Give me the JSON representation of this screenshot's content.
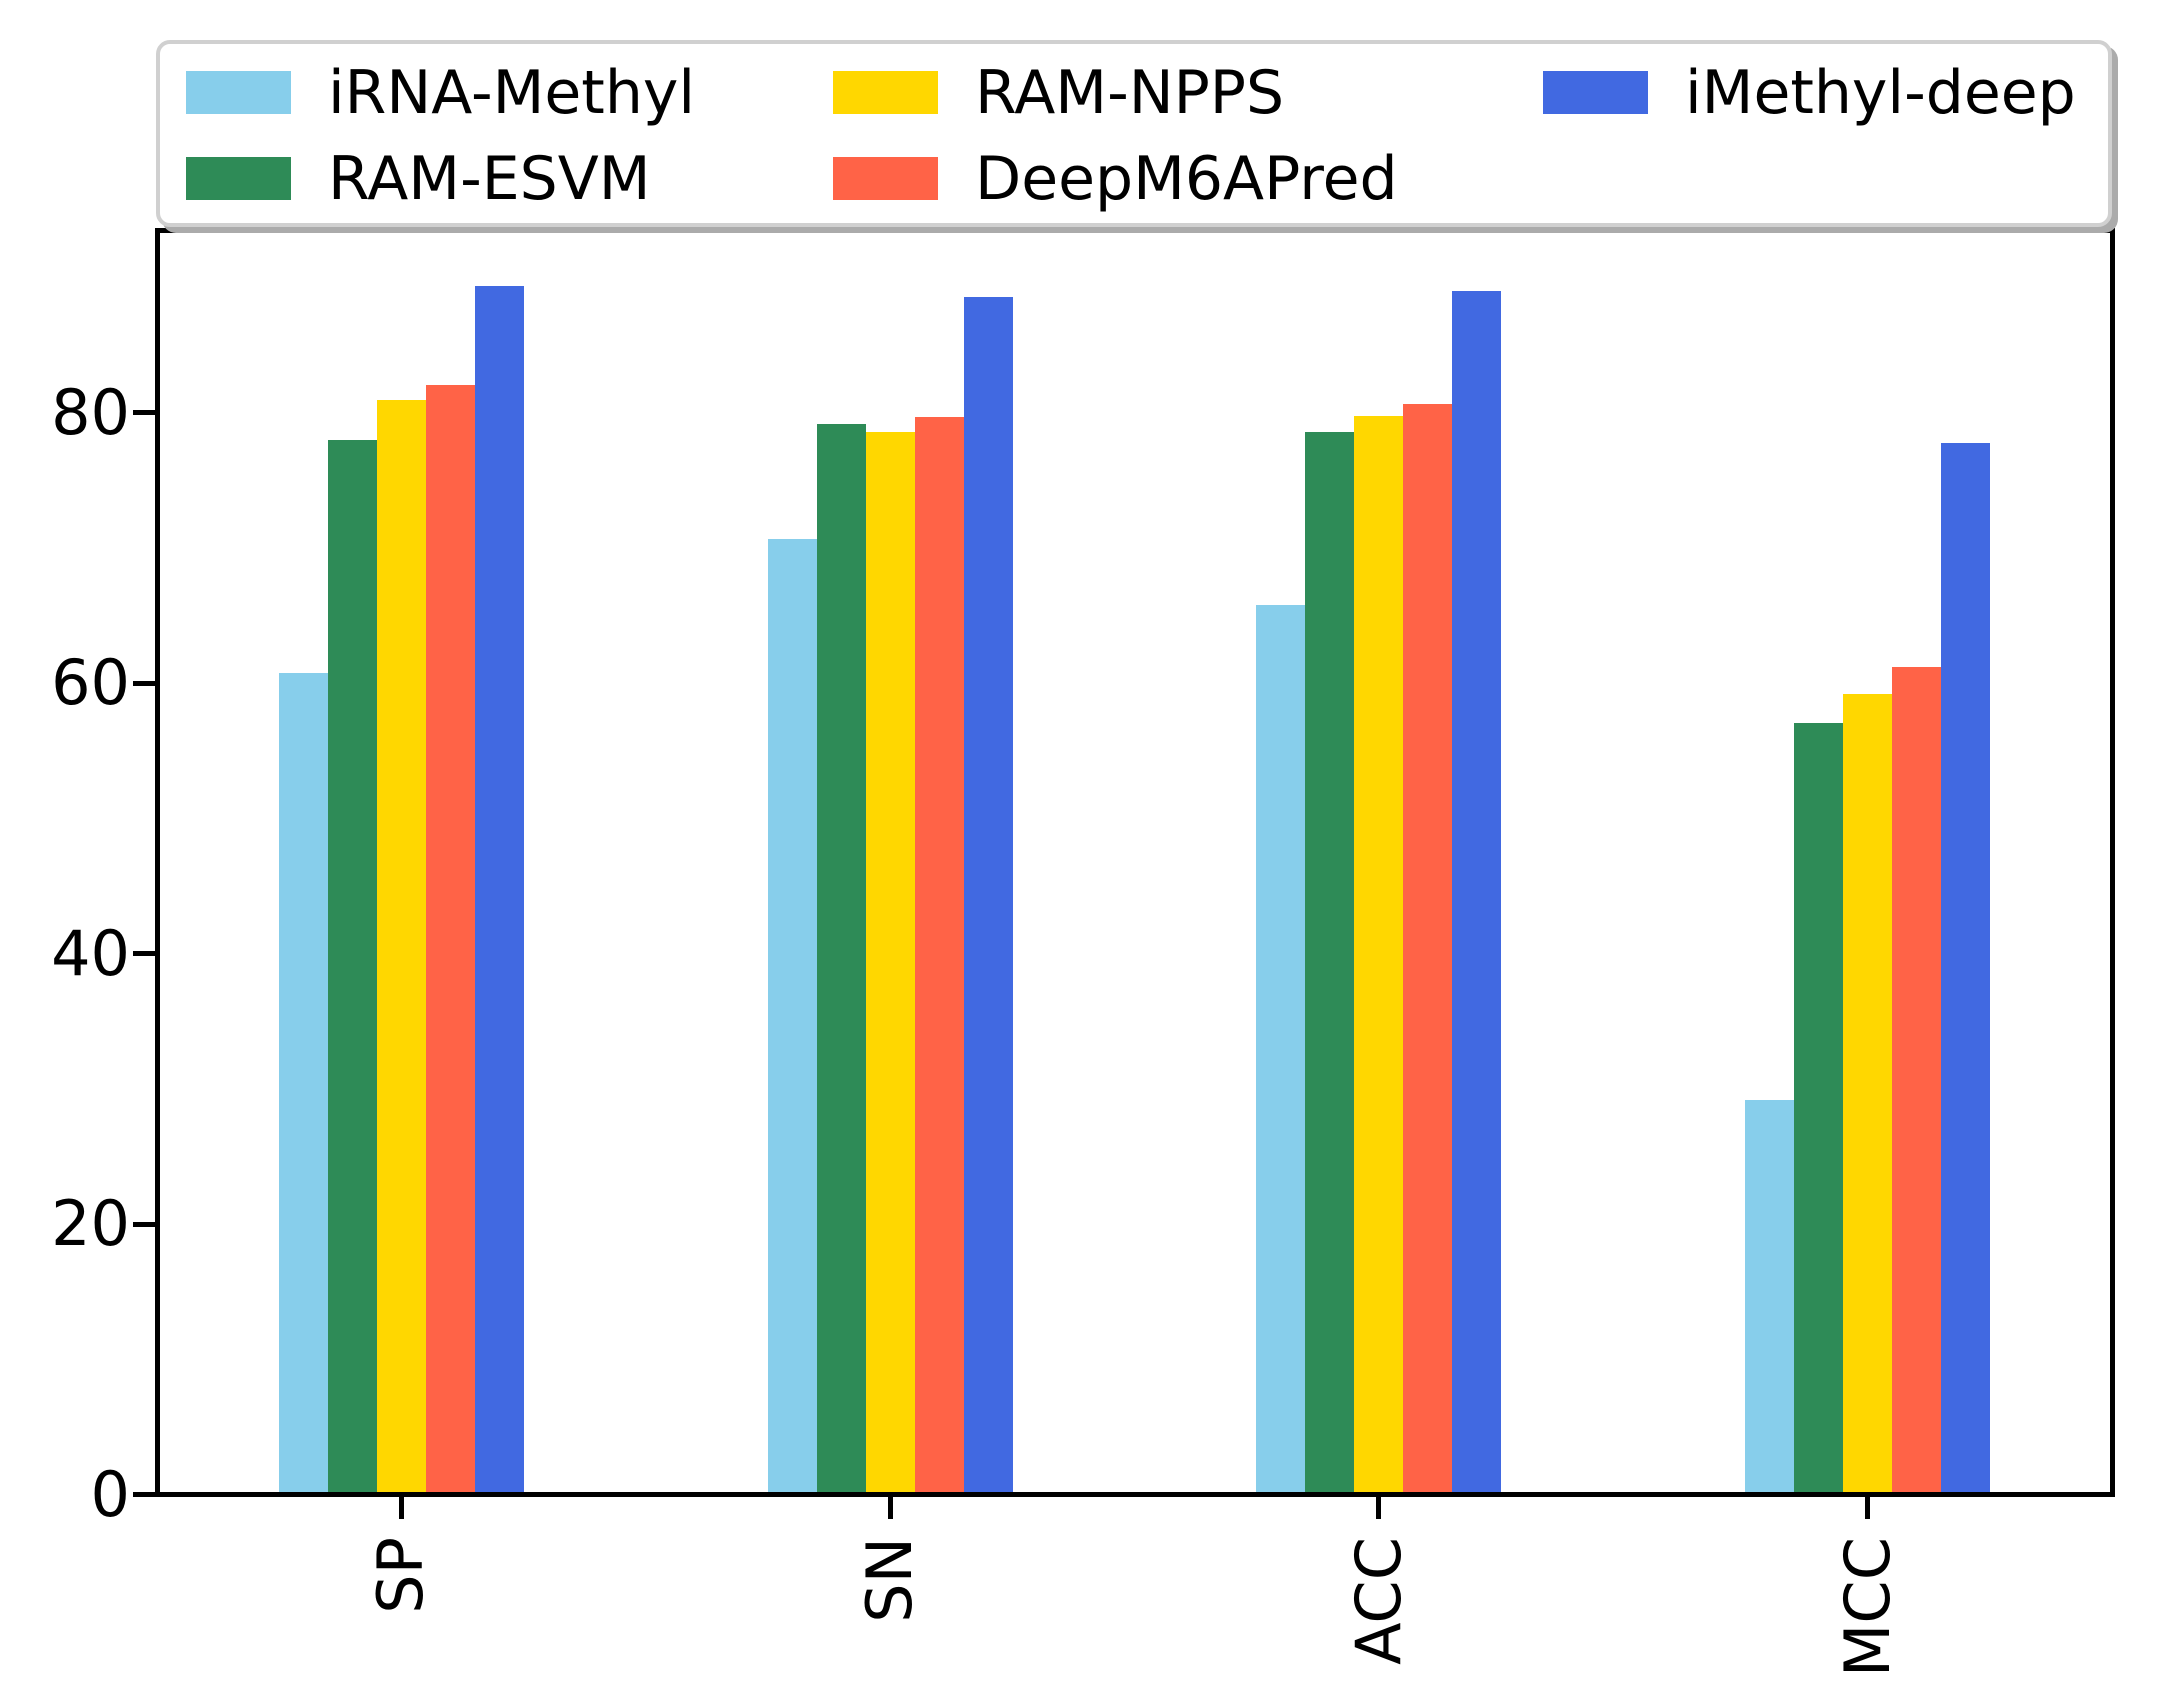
{
  "chart_data": {
    "type": "bar",
    "title": "",
    "xlabel": "",
    "ylabel": "",
    "categories": [
      "SP",
      "SN",
      "ACC",
      "MCC"
    ],
    "series": [
      {
        "name": "iRNA-Methyl",
        "color": "#87CEEB",
        "values": [
          60.6,
          70.5,
          65.6,
          29.0
        ]
      },
      {
        "name": "RAM-ESVM",
        "color": "#2E8B57",
        "values": [
          77.8,
          79.0,
          78.4,
          56.9
        ]
      },
      {
        "name": "RAM-NPPS",
        "color": "#FFD700",
        "values": [
          80.8,
          78.4,
          79.6,
          59.0
        ]
      },
      {
        "name": "DeepM6APred",
        "color": "#FF6347",
        "values": [
          81.9,
          79.5,
          80.5,
          61.0
        ]
      },
      {
        "name": "iMethyl-deep",
        "color": "#4169E1",
        "values": [
          89.2,
          88.4,
          88.8,
          77.6
        ]
      }
    ],
    "y_ticks": [
      "0",
      "20",
      "40",
      "60",
      "80"
    ],
    "y_tick_values": [
      0,
      20,
      40,
      60,
      80
    ],
    "ylim": [
      0,
      93.4
    ],
    "grid": false,
    "legend_position": "top",
    "legend_columns": [
      [
        0,
        1
      ],
      [
        2,
        3
      ],
      [
        4
      ]
    ],
    "axis_color": "#000000",
    "legend_border_color": "#d0d0d0"
  }
}
